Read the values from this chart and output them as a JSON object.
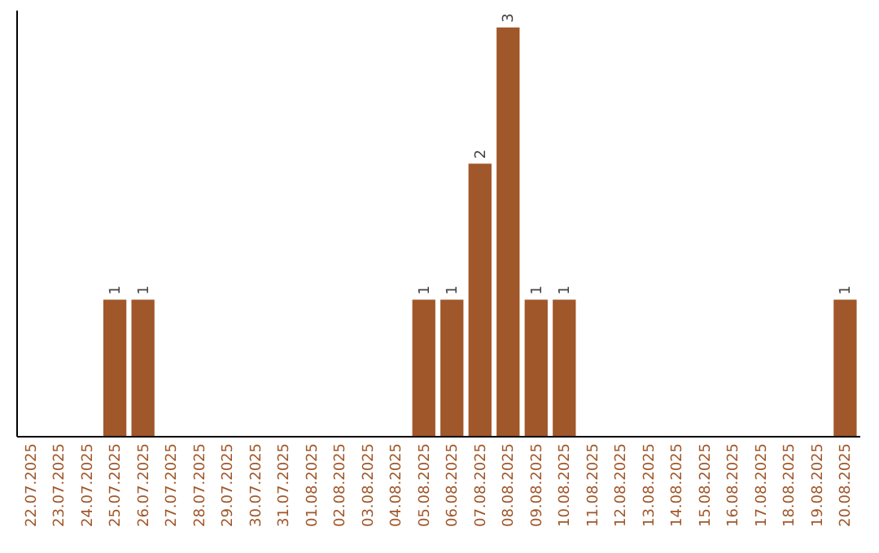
{
  "chart_data": {
    "type": "bar",
    "categories": [
      "22.07.2025",
      "23.07.2025",
      "24.07.2025",
      "25.07.2025",
      "26.07.2025",
      "27.07.2025",
      "28.07.2025",
      "29.07.2025",
      "30.07.2025",
      "31.07.2025",
      "01.08.2025",
      "02.08.2025",
      "03.08.2025",
      "04.08.2025",
      "05.08.2025",
      "06.08.2025",
      "07.08.2025",
      "08.08.2025",
      "09.08.2025",
      "10.08.2025",
      "11.08.2025",
      "12.08.2025",
      "13.08.2025",
      "14.08.2025",
      "15.08.2025",
      "16.08.2025",
      "17.08.2025",
      "18.08.2025",
      "19.08.2025",
      "20.08.2025"
    ],
    "values": [
      0,
      0,
      0,
      1,
      1,
      0,
      0,
      0,
      0,
      0,
      0,
      0,
      0,
      0,
      1,
      1,
      2,
      3,
      1,
      1,
      0,
      0,
      0,
      0,
      0,
      0,
      0,
      0,
      0,
      1
    ],
    "value_labels": [
      null,
      null,
      null,
      "1",
      "1",
      null,
      null,
      null,
      null,
      null,
      null,
      null,
      null,
      null,
      "1",
      "1",
      "2",
      "3",
      "1",
      "1",
      null,
      null,
      null,
      null,
      null,
      null,
      null,
      null,
      null,
      "1"
    ],
    "color": "#a0572a",
    "ylim": [
      0,
      3.13
    ],
    "tick_labels": "x",
    "grid": false
  }
}
